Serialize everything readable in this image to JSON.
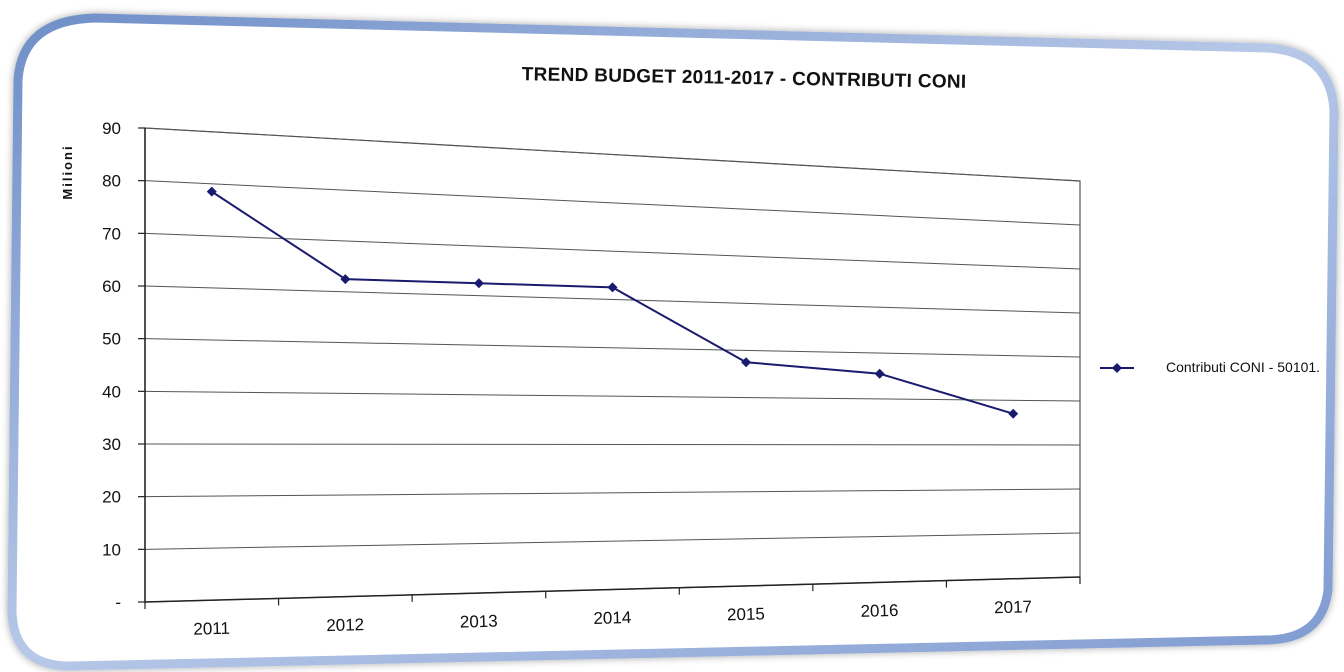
{
  "chart_data": {
    "type": "line",
    "title": "TREND BUDGET 2011-2017 - CONTRIBUTI CONI",
    "ylabel": "Milioni",
    "xlabel": "",
    "categories": [
      "2011",
      "2012",
      "2013",
      "2014",
      "2015",
      "2016",
      "2017"
    ],
    "series": [
      {
        "name": "Contributi CONI - 50101.",
        "values": [
          78.5,
          62.5,
          62.5,
          62.5,
          47.5,
          45.5,
          37.0
        ]
      }
    ],
    "ylim": [
      0,
      90
    ],
    "yticks": [
      0,
      10,
      20,
      30,
      40,
      50,
      60,
      70,
      80,
      90
    ],
    "ytick_labels": [
      "-",
      "10",
      "20",
      "30",
      "40",
      "50",
      "60",
      "70",
      "80",
      "90"
    ],
    "grid": true,
    "legend": "right",
    "colors": {
      "series": "#1a1a6e",
      "frame": "#8fa8d8",
      "grid": "#555555"
    }
  }
}
